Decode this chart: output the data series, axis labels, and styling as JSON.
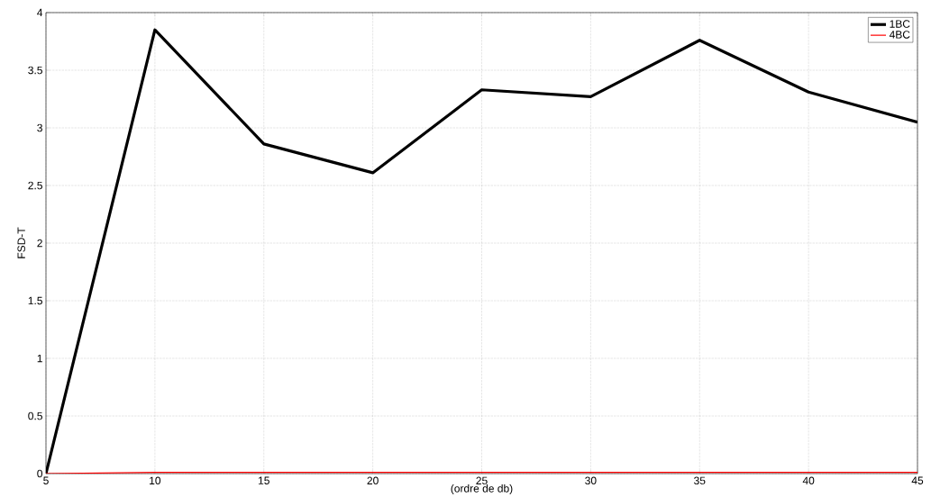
{
  "chart_data": {
    "type": "line",
    "xlabel": "(ordre de db)",
    "ylabel": "FSD-T",
    "x": [
      5,
      10,
      15,
      20,
      25,
      30,
      35,
      40,
      45
    ],
    "series": [
      {
        "name": "1BC",
        "color": "#000000",
        "values": [
          0,
          3.85,
          2.86,
          2.61,
          3.33,
          3.27,
          3.76,
          3.31,
          3.05
        ]
      },
      {
        "name": "4BC",
        "color": "#ff0000",
        "values": [
          0,
          0.01,
          0.01,
          0.01,
          0.01,
          0.01,
          0.01,
          0.01,
          0.01
        ]
      }
    ],
    "xlim": [
      5,
      45
    ],
    "ylim": [
      0,
      4
    ],
    "xticks": [
      5,
      10,
      15,
      20,
      25,
      30,
      35,
      40,
      45
    ],
    "yticks": [
      0,
      0.5,
      1,
      1.5,
      2,
      2.5,
      3,
      3.5,
      4
    ],
    "grid": true,
    "legend": "top right",
    "marker": "none",
    "line_style": "solid"
  }
}
